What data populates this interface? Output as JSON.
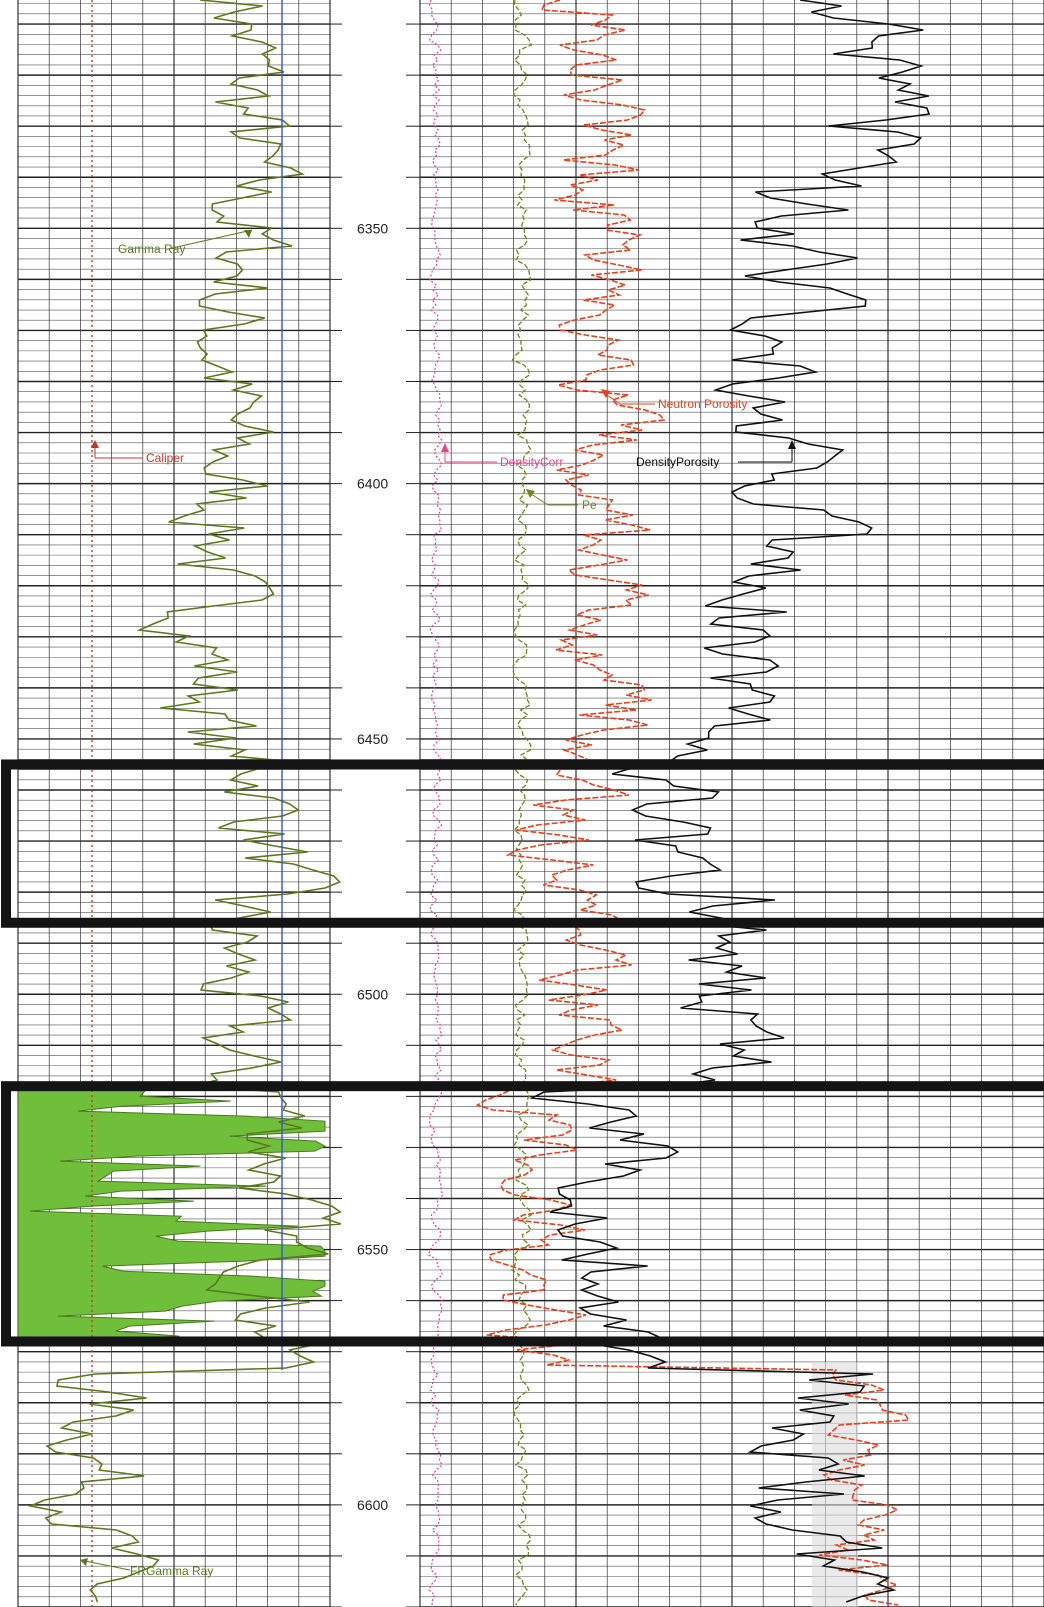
{
  "chart_data": {
    "type": "line",
    "y_axis": {
      "label": "",
      "range": [
        6300,
        6620
      ],
      "inverted": true,
      "ticks": [
        6350,
        6400,
        6450,
        6500,
        6550,
        6600
      ]
    },
    "series": [
      {
        "name": "Gamma Ray",
        "color": "#5a7a1c",
        "track": 1
      },
      {
        "name": "Caliper",
        "color": "#c0392b",
        "track": 1
      },
      {
        "name": "FRGamma Ray",
        "color": "#5a7a1c",
        "track": 1
      },
      {
        "name": "DensityCorr",
        "color": "#e8438a",
        "track": 2
      },
      {
        "name": "Pe",
        "color": "#6a8a1e",
        "track": 2
      },
      {
        "name": "Neutron Porosity",
        "color": "#e8401c",
        "track": 2
      },
      {
        "name": "DensityPorosity",
        "color": "#111111",
        "track": 2
      }
    ],
    "highlight_intervals": [
      [
        6455,
        6486
      ],
      [
        6518,
        6568
      ]
    ],
    "shaded_interval_track1": [
      6518,
      6568
    ],
    "shaded_interval_track2": [
      6572,
      6620
    ],
    "grid": true
  },
  "labels": {
    "gamma_ray": "Gamma Ray",
    "caliper": "Caliper",
    "fr_gamma_ray": "FRGamma Ray",
    "density_corr": "DensityCorr",
    "pe": "Pe",
    "neutron_porosity": "Neutron Porosity",
    "density_porosity": "DensityPorosity"
  },
  "depth_labels": [
    "6350",
    "6400",
    "6450",
    "6500",
    "6550",
    "6600"
  ]
}
